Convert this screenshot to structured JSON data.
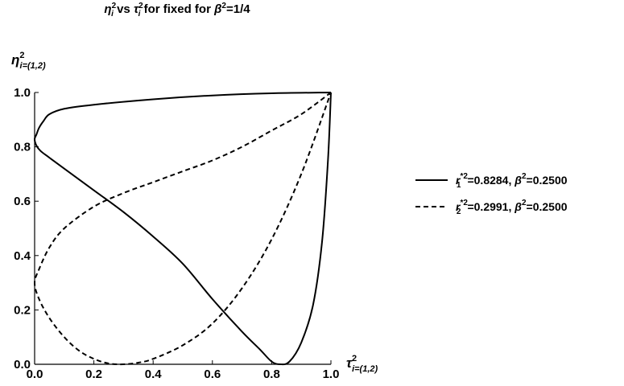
{
  "chart_data": {
    "type": "line",
    "title": {
      "eta": "η",
      "sub_i": "i",
      "sup2": "2",
      "vs": " vs ",
      "tau": "τ",
      "mid": " for fixed for ",
      "beta": "β",
      "tail": "=1/4"
    },
    "xlabel": {
      "sym": "τ",
      "sup": "2",
      "sub": "i=(1,2)"
    },
    "ylabel": {
      "sym": "η",
      "sup": "2",
      "sub": "i=(1,2)"
    },
    "xlim": [
      0,
      1
    ],
    "ylim": [
      0,
      1
    ],
    "xticks": [
      "0.0",
      "0.2",
      "0.4",
      "0.6",
      "0.8",
      "1.0"
    ],
    "yticks": [
      "0.0",
      "0.2",
      "0.4",
      "0.6",
      "0.8",
      "1.0"
    ],
    "grid": false,
    "legend_position": "right",
    "series": [
      {
        "name": "r₁*²=0.8284, β²=0.2500",
        "legend": {
          "r": "r",
          "sub": "1",
          "sup": "*2",
          "value": "=0.8284, ",
          "beta": "β",
          "beta_sup": "2",
          "beta_value": "=0.2500"
        },
        "style": "solid",
        "points": [
          [
            1.0,
            1.0
          ],
          [
            0.8,
            0.997
          ],
          [
            0.6,
            0.989
          ],
          [
            0.4,
            0.975
          ],
          [
            0.2,
            0.955
          ],
          [
            0.1,
            0.94
          ],
          [
            0.05,
            0.92
          ],
          [
            0.03,
            0.895
          ],
          [
            0.015,
            0.87
          ],
          [
            0.006,
            0.845
          ],
          [
            0.0,
            0.8284
          ],
          [
            0.006,
            0.805
          ],
          [
            0.02,
            0.785
          ],
          [
            0.05,
            0.76
          ],
          [
            0.1,
            0.72
          ],
          [
            0.2,
            0.64
          ],
          [
            0.3,
            0.56
          ],
          [
            0.4,
            0.47
          ],
          [
            0.5,
            0.37
          ],
          [
            0.6,
            0.24
          ],
          [
            0.7,
            0.12
          ],
          [
            0.76,
            0.055
          ],
          [
            0.8,
            0.01
          ],
          [
            0.8284,
            0.0
          ],
          [
            0.86,
            0.01
          ],
          [
            0.9,
            0.08
          ],
          [
            0.94,
            0.22
          ],
          [
            0.97,
            0.45
          ],
          [
            0.99,
            0.75
          ],
          [
            1.0,
            1.0
          ]
        ]
      },
      {
        "name": "r₂*²=0.2991, β²=0.2500",
        "legend": {
          "r": "r",
          "sub": "2",
          "sup": "*2",
          "value": "=0.2991, ",
          "beta": "β",
          "beta_sup": "2",
          "beta_value": "=0.2500"
        },
        "style": "dashed",
        "points": [
          [
            1.0,
            1.0
          ],
          [
            0.9,
            0.92
          ],
          [
            0.8,
            0.86
          ],
          [
            0.7,
            0.8
          ],
          [
            0.6,
            0.75
          ],
          [
            0.5,
            0.71
          ],
          [
            0.4,
            0.67
          ],
          [
            0.3,
            0.63
          ],
          [
            0.2,
            0.58
          ],
          [
            0.1,
            0.5
          ],
          [
            0.05,
            0.43
          ],
          [
            0.015,
            0.35
          ],
          [
            0.0,
            0.2991
          ],
          [
            0.015,
            0.24
          ],
          [
            0.05,
            0.17
          ],
          [
            0.1,
            0.1
          ],
          [
            0.15,
            0.05
          ],
          [
            0.2,
            0.02
          ],
          [
            0.25,
            0.003
          ],
          [
            0.2991,
            0.0
          ],
          [
            0.35,
            0.006
          ],
          [
            0.4,
            0.02
          ],
          [
            0.5,
            0.07
          ],
          [
            0.6,
            0.15
          ],
          [
            0.7,
            0.28
          ],
          [
            0.8,
            0.46
          ],
          [
            0.9,
            0.7
          ],
          [
            1.0,
            1.0
          ]
        ]
      }
    ]
  }
}
